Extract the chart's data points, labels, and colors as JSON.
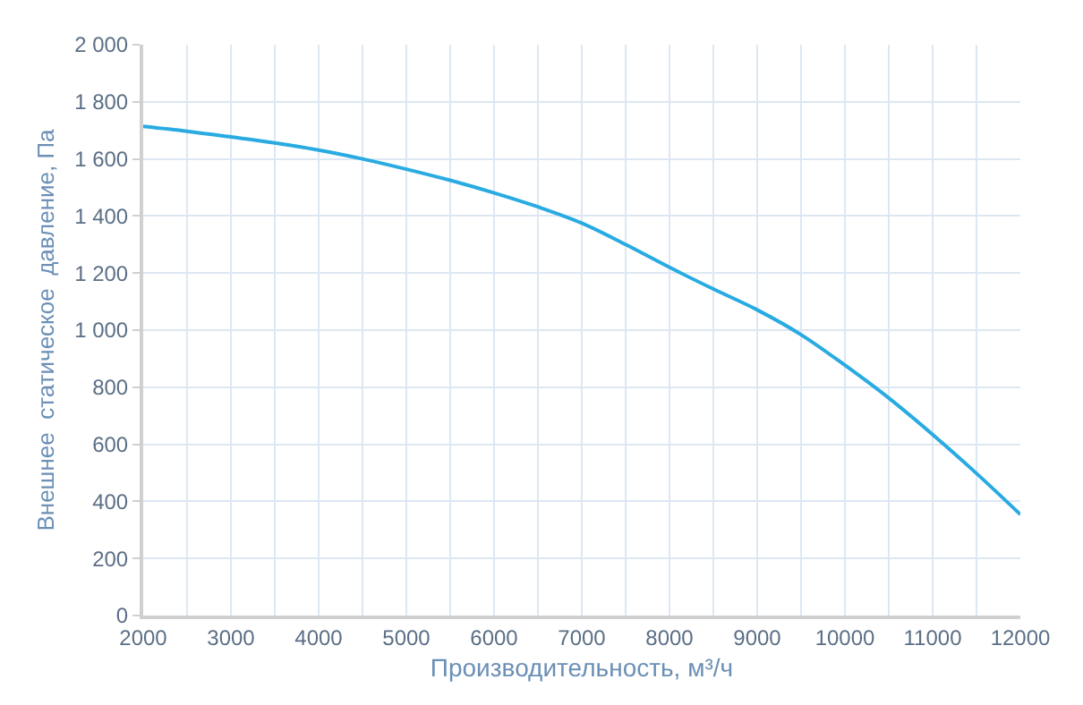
{
  "chart_data": {
    "type": "line",
    "xlabel": "Производительность, м³/ч",
    "ylabel": "Внешнее  статическое  давление, Па",
    "series": [
      {
        "color": "#29abe2",
        "x": [
          2000,
          2500,
          3000,
          3500,
          4000,
          4500,
          5000,
          5500,
          6000,
          6500,
          7000,
          7500,
          8000,
          8500,
          9000,
          9500,
          10000,
          10500,
          11000,
          11500,
          12000
        ],
        "values": [
          1714,
          1697,
          1677,
          1656,
          1631,
          1600,
          1564,
          1525,
          1481,
          1432,
          1375,
          1300,
          1220,
          1144,
          1071,
          984,
          877,
          762,
          634,
          498,
          354
        ]
      }
    ],
    "xlim": [
      2000,
      12000
    ],
    "xticks": [
      2000,
      {
        "value": 2500,
        "label": null
      },
      3000,
      {
        "value": 3500,
        "label": null
      },
      4000,
      {
        "value": 4500,
        "label": null
      },
      5000,
      {
        "value": 5500,
        "label": null
      },
      6000,
      {
        "value": 6500,
        "label": null
      },
      7000,
      {
        "value": 7500,
        "label": null
      },
      8000,
      {
        "value": 8500,
        "label": null
      },
      9000,
      {
        "value": 9500,
        "label": null
      },
      10000,
      {
        "value": 10500,
        "label": null
      },
      11000,
      {
        "value": 11500,
        "label": null
      },
      12000
    ],
    "ylim": [
      0,
      2000
    ],
    "yticks": [
      0,
      200,
      400,
      600,
      800,
      {
        "value": 1000,
        "label": "1 000"
      },
      {
        "value": 1200,
        "label": "1 200"
      },
      {
        "value": 1400,
        "label": "1 400"
      },
      {
        "value": 1600,
        "label": "1 600"
      },
      {
        "value": 1800,
        "label": "1 800"
      },
      {
        "value": 2000,
        "label": "2 000"
      }
    ],
    "grid": true,
    "marker": "none",
    "line_style": "solid"
  }
}
